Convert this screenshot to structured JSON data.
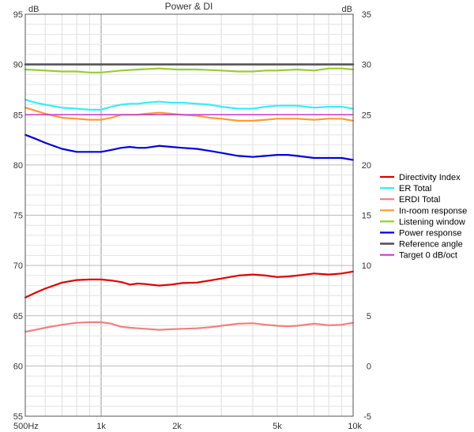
{
  "chart_data": {
    "type": "line",
    "title": "Power & DI",
    "left_unit": "dB",
    "right_unit": "dB",
    "x_scale": "log",
    "xlim": [
      500,
      10000
    ],
    "ylim_left": [
      55,
      95
    ],
    "ylim_right": [
      -5,
      35
    ],
    "x_ticks": [
      {
        "value": 500,
        "label": "500Hz"
      },
      {
        "value": 1000,
        "label": "1k"
      },
      {
        "value": 2000,
        "label": "2k"
      },
      {
        "value": 5000,
        "label": "5k"
      },
      {
        "value": 10000,
        "label": "10k"
      }
    ],
    "y_ticks_left": [
      "55",
      "60",
      "65",
      "70",
      "75",
      "80",
      "85",
      "90",
      "95"
    ],
    "y_ticks_right": [
      "-5",
      "0",
      "5",
      "10",
      "15",
      "20",
      "25",
      "30",
      "35"
    ],
    "grid": true,
    "legend_position": "right",
    "series": [
      {
        "name": "Directivity Index",
        "axis": "right",
        "color": "#e00000",
        "width": 2.2,
        "x": [
          500,
          550,
          600,
          700,
          800,
          900,
          1000,
          1100,
          1200,
          1300,
          1400,
          1500,
          1700,
          1900,
          2100,
          2400,
          2700,
          3000,
          3500,
          4000,
          4500,
          5000,
          5500,
          6000,
          7000,
          8000,
          9000,
          10000
        ],
        "y": [
          6.8,
          7.3,
          7.7,
          8.3,
          8.55,
          8.6,
          8.6,
          8.5,
          8.35,
          8.1,
          8.2,
          8.15,
          8.0,
          8.1,
          8.25,
          8.3,
          8.5,
          8.7,
          9.0,
          9.1,
          9.0,
          8.85,
          8.9,
          9.0,
          9.2,
          9.1,
          9.2,
          9.4
        ]
      },
      {
        "name": "ER Total",
        "axis": "left",
        "color": "#33eeff",
        "width": 2.2,
        "x": [
          500,
          550,
          600,
          700,
          800,
          900,
          1000,
          1100,
          1200,
          1300,
          1400,
          1500,
          1700,
          1900,
          2100,
          2400,
          2700,
          3000,
          3500,
          4000,
          4500,
          5000,
          5500,
          6000,
          7000,
          8000,
          9000,
          10000
        ],
        "y": [
          86.5,
          86.2,
          86.0,
          85.7,
          85.6,
          85.5,
          85.5,
          85.8,
          86.0,
          86.1,
          86.1,
          86.2,
          86.3,
          86.2,
          86.2,
          86.1,
          86.0,
          85.8,
          85.6,
          85.6,
          85.8,
          85.9,
          85.9,
          85.9,
          85.7,
          85.8,
          85.8,
          85.6
        ]
      },
      {
        "name": "ERDI Total",
        "axis": "right",
        "color": "#f08080",
        "width": 2.2,
        "x": [
          500,
          550,
          600,
          700,
          800,
          900,
          1000,
          1100,
          1200,
          1300,
          1400,
          1500,
          1700,
          1900,
          2100,
          2400,
          2700,
          3000,
          3500,
          4000,
          4500,
          5000,
          5500,
          6000,
          7000,
          8000,
          9000,
          10000
        ],
        "y": [
          3.4,
          3.6,
          3.8,
          4.1,
          4.3,
          4.35,
          4.35,
          4.2,
          3.9,
          3.8,
          3.75,
          3.7,
          3.6,
          3.65,
          3.7,
          3.75,
          3.85,
          4.0,
          4.2,
          4.25,
          4.1,
          4.0,
          3.95,
          4.0,
          4.2,
          4.05,
          4.1,
          4.3
        ]
      },
      {
        "name": "In-room response",
        "axis": "left",
        "color": "#ff9933",
        "width": 2.2,
        "x": [
          500,
          550,
          600,
          700,
          800,
          900,
          1000,
          1100,
          1200,
          1300,
          1400,
          1500,
          1700,
          1900,
          2100,
          2400,
          2700,
          3000,
          3500,
          4000,
          4500,
          5000,
          5500,
          6000,
          7000,
          8000,
          9000,
          10000
        ],
        "y": [
          85.7,
          85.4,
          85.1,
          84.7,
          84.6,
          84.5,
          84.5,
          84.7,
          85.0,
          85.0,
          85.0,
          85.1,
          85.2,
          85.1,
          85.0,
          84.9,
          84.7,
          84.6,
          84.4,
          84.4,
          84.5,
          84.6,
          84.6,
          84.6,
          84.5,
          84.6,
          84.6,
          84.4
        ]
      },
      {
        "name": "Listening window",
        "axis": "left",
        "color": "#99cc33",
        "width": 2.2,
        "x": [
          500,
          600,
          700,
          800,
          900,
          1000,
          1200,
          1400,
          1700,
          2000,
          2400,
          3000,
          3500,
          4000,
          4500,
          5000,
          6000,
          7000,
          8000,
          9000,
          10000
        ],
        "y": [
          89.5,
          89.4,
          89.3,
          89.3,
          89.2,
          89.2,
          89.4,
          89.5,
          89.6,
          89.5,
          89.5,
          89.4,
          89.3,
          89.3,
          89.4,
          89.4,
          89.5,
          89.4,
          89.6,
          89.6,
          89.5
        ]
      },
      {
        "name": "Power response",
        "axis": "left",
        "color": "#0000dd",
        "width": 2.2,
        "x": [
          500,
          550,
          600,
          700,
          800,
          900,
          1000,
          1100,
          1200,
          1300,
          1400,
          1500,
          1700,
          1900,
          2100,
          2400,
          2700,
          3000,
          3500,
          4000,
          4500,
          5000,
          5500,
          6000,
          7000,
          8000,
          9000,
          10000
        ],
        "y": [
          83.0,
          82.6,
          82.2,
          81.6,
          81.3,
          81.3,
          81.3,
          81.5,
          81.7,
          81.8,
          81.7,
          81.7,
          81.9,
          81.8,
          81.7,
          81.6,
          81.4,
          81.2,
          80.9,
          80.8,
          80.9,
          81.0,
          81.0,
          80.9,
          80.7,
          80.7,
          80.7,
          80.5
        ]
      },
      {
        "name": "Reference angle",
        "axis": "left",
        "color": "#555555",
        "width": 2.6,
        "x": [
          500,
          10000
        ],
        "y": [
          90.0,
          90.0
        ]
      },
      {
        "name": "Target 0 dB/oct",
        "axis": "left",
        "color": "#cc33cc",
        "width": 1.5,
        "x": [
          500,
          10000
        ],
        "y": [
          85.0,
          85.0
        ]
      }
    ]
  }
}
